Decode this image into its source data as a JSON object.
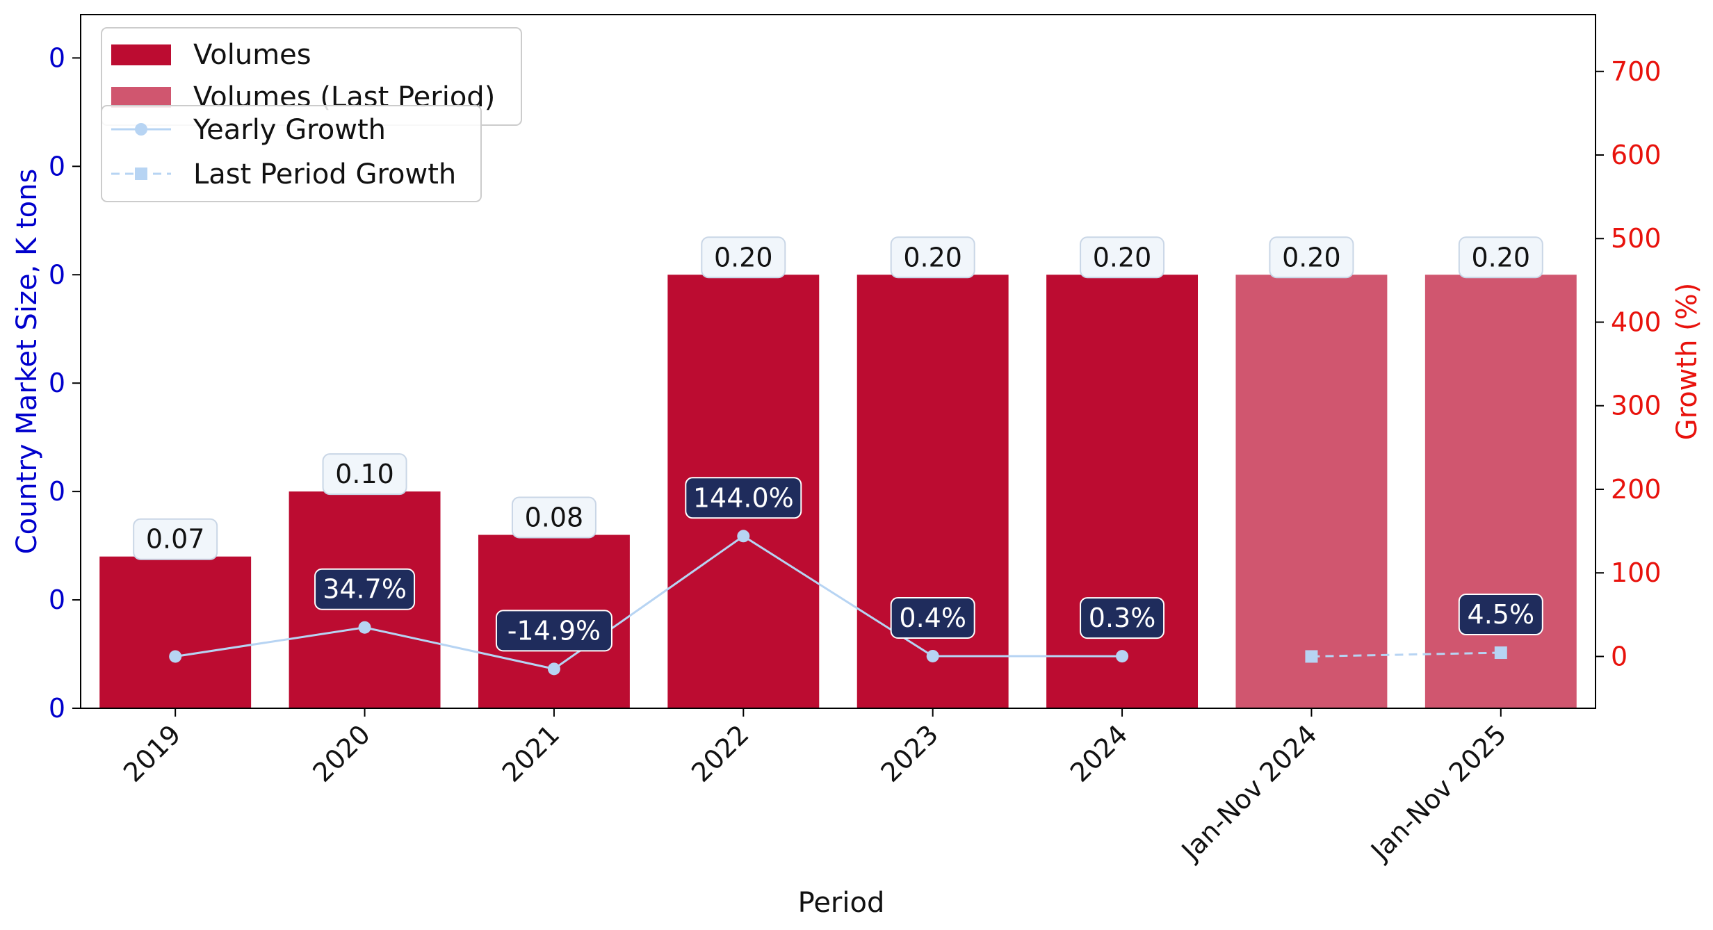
{
  "chart_data": {
    "type": "bar",
    "title": "",
    "xlabel": "Period",
    "ylabel_left": "Country Market Size, K tons",
    "ylabel_right": "Growth (%)",
    "categories": [
      "2019",
      "2020",
      "2021",
      "2022",
      "2023",
      "2024",
      "Jan-Nov 2024",
      "Jan-Nov 2025"
    ],
    "volumes": [
      0.07,
      0.1,
      0.08,
      0.2,
      0.2,
      0.2,
      0.2,
      0.2
    ],
    "volume_labels": [
      "0.07",
      "0.10",
      "0.08",
      "0.20",
      "0.20",
      "0.20",
      "0.20",
      "0.20"
    ],
    "last_period_flags": [
      false,
      false,
      false,
      false,
      false,
      false,
      true,
      true
    ],
    "yearly_growth": [
      0,
      34.7,
      -14.9,
      144.0,
      0.4,
      0.3,
      null,
      null
    ],
    "yearly_growth_labels": [
      "",
      "34.7%",
      "-14.9%",
      "144.0%",
      "0.4%",
      "0.3%",
      "",
      ""
    ],
    "last_period_growth": [
      null,
      null,
      null,
      null,
      null,
      null,
      0,
      4.5
    ],
    "last_period_growth_labels": [
      "",
      "",
      "",
      "",
      "",
      "",
      "",
      "4.5%"
    ],
    "left_ylim": [
      0,
      0.32
    ],
    "left_ticks": [
      0,
      0.05,
      0.1,
      0.15,
      0.2,
      0.25,
      0.3
    ],
    "left_tick_labels": [
      "0",
      "0",
      "0",
      "0",
      "0",
      "0",
      "0"
    ],
    "right_ylim": [
      -62,
      768
    ],
    "right_ticks": [
      0,
      100,
      200,
      300,
      400,
      500,
      600,
      700
    ],
    "right_tick_labels": [
      "0",
      "100",
      "200",
      "300",
      "400",
      "500",
      "600",
      "700"
    ],
    "legend": {
      "placement": "top-left",
      "bars": [
        "Volumes",
        "Volumes (Last Period)"
      ],
      "lines": [
        "Yearly Growth",
        "Last Period Growth"
      ]
    },
    "colors": {
      "volumes": "#bc0c31",
      "volumes_last_period": "#d0566f",
      "growth_line": "#b7d4f3",
      "growth_label_bg": "#1f2c5c",
      "value_label_bg": "#f1f6fb",
      "left_axis": "#0000cc",
      "right_axis": "#e8120c"
    },
    "grid": false
  }
}
